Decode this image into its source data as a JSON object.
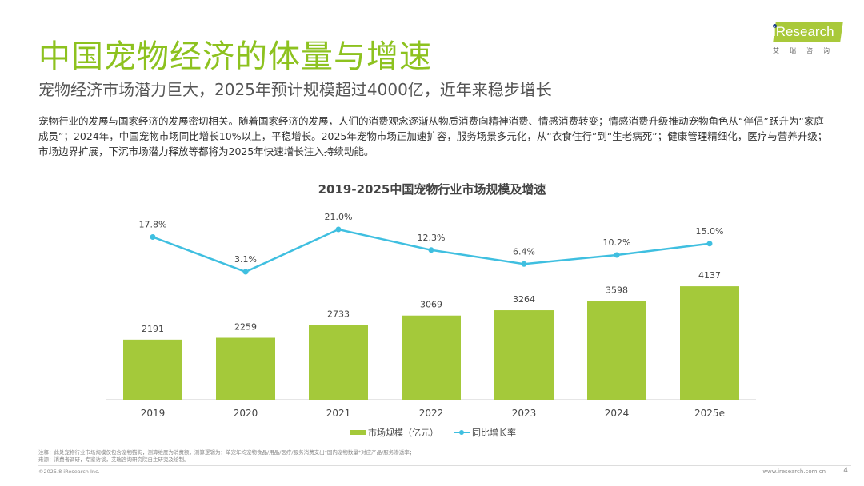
{
  "header": {
    "title": "中国宠物经济的体量与增速",
    "subtitle": "宠物经济市场潜力巨大，2025年预计规模超过4000亿，近年来稳步增长",
    "paragraph": "宠物行业的发展与国家经济的发展密切相关。随着国家经济的发展，人们的消费观念逐渐从物质消费向精神消费、情感消费转变；情感消费升级推动宠物角色从“伴侣”跃升为“家庭成员”；2024年，中国宠物市场同比增长10%以上，平稳增长。2025年宠物市场正加速扩容，服务场景多元化，从“衣食住行”到“生老病死”；健康管理精细化，医疗与营养升级；市场边界扩展，下沉市场潜力释放等都将为2025年快速增长注入持续动能。"
  },
  "logo": {
    "text": "iResearch",
    "cn": "艾瑞咨询"
  },
  "chart_data": {
    "type": "bar+line",
    "title": "2019-2025中国宠物行业市场规模及增速",
    "categories": [
      "2019",
      "2020",
      "2021",
      "2022",
      "2023",
      "2024",
      "2025e"
    ],
    "series": [
      {
        "name": "市场规模（亿元）",
        "type": "bar",
        "values": [
          2191,
          2259,
          2733,
          3069,
          3264,
          3598,
          4137
        ],
        "labels": [
          "2191",
          "2259",
          "2733",
          "3069",
          "3264",
          "3598",
          "4137"
        ],
        "color": "#a4c93a"
      },
      {
        "name": "同比增长率",
        "type": "line",
        "values": [
          17.8,
          3.1,
          21.0,
          12.3,
          6.4,
          10.2,
          15.0
        ],
        "labels": [
          "17.8%",
          "3.1%",
          "21.0%",
          "12.3%",
          "6.4%",
          "10.2%",
          "15.0%"
        ],
        "color": "#3fbfe0"
      }
    ],
    "legend": "bottom",
    "grid": false
  },
  "footer": {
    "note": "注释：此处宠物行业市场规模仅包含宠物猫狗，测算维度为消费额，测算逻辑为：单宠年均宠物食品/用品/医疗/服务消费支出*国内宠物数量*对应产品/服务渗透率；",
    "source": "来源：消费者调研，专家访谈，艾瑞咨询研究院自主研究及绘制。",
    "copyright": "©2025.8 iResearch Inc.",
    "url": "www.iresearch.com.cn",
    "page": "4"
  }
}
